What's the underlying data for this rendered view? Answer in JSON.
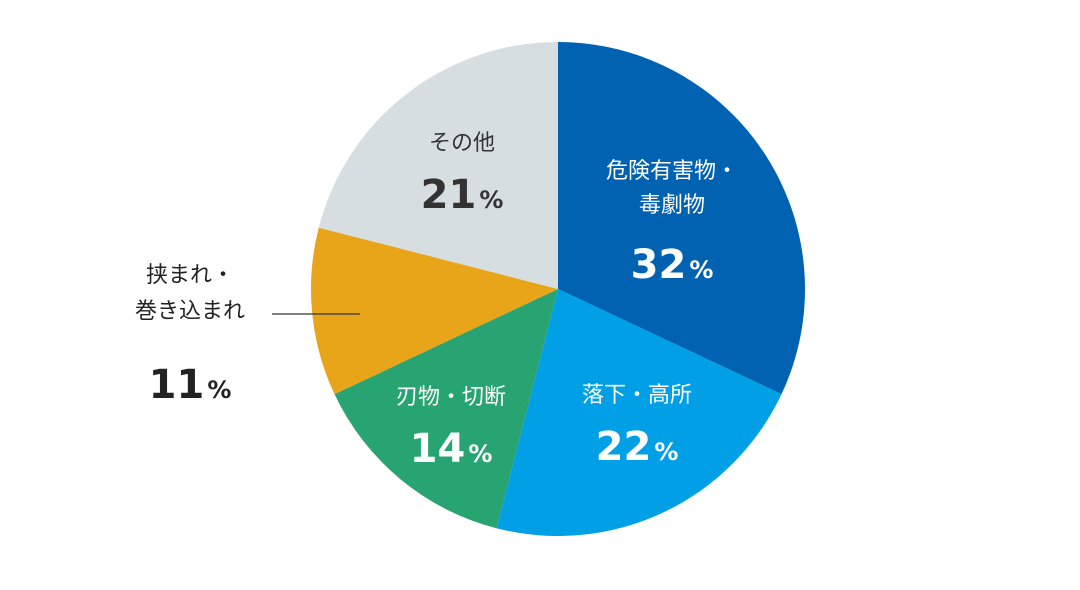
{
  "chart_data": {
    "type": "pie",
    "start_angle_deg": 0,
    "direction": "clockwise",
    "unit": "%",
    "slices": [
      {
        "name": "hazardous",
        "label_lines": [
          "危険有害物・",
          "毒劇物"
        ],
        "value": 32,
        "color": "#0062b1",
        "text_color": "#ffffff"
      },
      {
        "name": "fall",
        "label_lines": [
          "落下・高所"
        ],
        "value": 22,
        "color": "#019fe6",
        "text_color": "#ffffff"
      },
      {
        "name": "cutting",
        "label_lines": [
          "刃物・切断"
        ],
        "value": 14,
        "color": "#27a471",
        "text_color": "#ffffff"
      },
      {
        "name": "caught",
        "label_lines": [
          "挟まれ・",
          "巻き込まれ"
        ],
        "value": 11,
        "color": "#e9a519",
        "text_color": "#222222",
        "outside": true
      },
      {
        "name": "other",
        "label_lines": [
          "その他"
        ],
        "value": 21,
        "color": "#d7dee2",
        "text_color": "#333333"
      }
    ]
  }
}
